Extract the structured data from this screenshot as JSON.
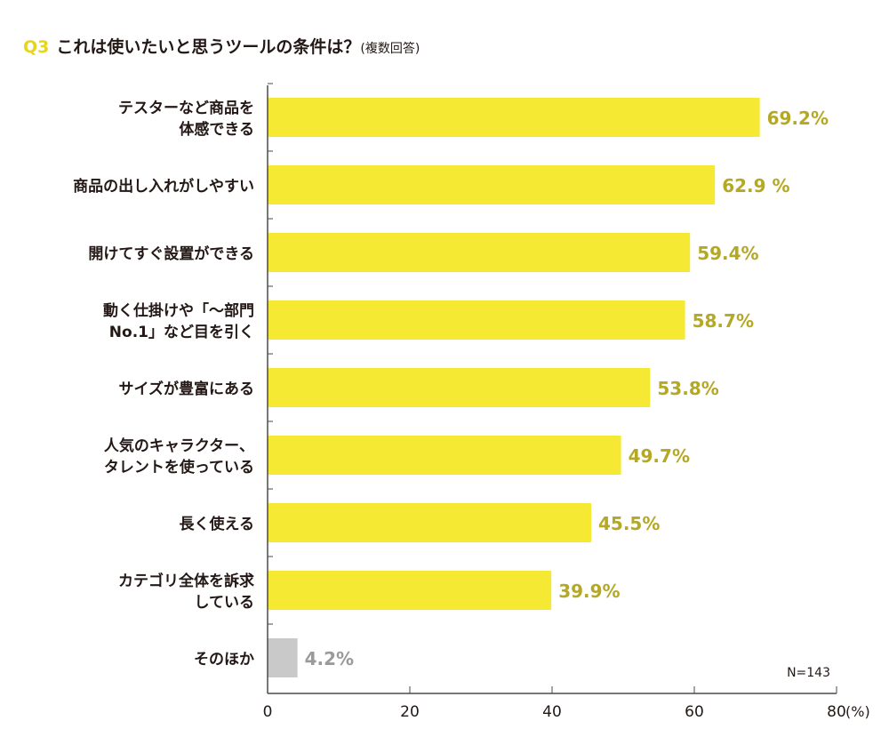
{
  "question": {
    "number": "Q3",
    "title": "これは使いたいと思うツールの条件は？",
    "subtitle": "(複数回答)"
  },
  "sample_note": "N=143",
  "colors": {
    "bar": "#f5e934",
    "other_bar": "#c9c9c9",
    "value_label": "#b5a824",
    "other_label": "#9a9a9a",
    "axis": "#4a4a4a"
  },
  "chart_data": {
    "type": "bar",
    "orientation": "horizontal",
    "categories": [
      [
        "テスターなど商品を",
        "体感できる"
      ],
      [
        "商品の出し入れがしやすい"
      ],
      [
        "開けてすぐ設置ができる"
      ],
      [
        "動く仕掛けや「～部門",
        "No.1」など目を引く"
      ],
      [
        "サイズが豊富にある"
      ],
      [
        "人気のキャラクター、",
        "タレントを使っている"
      ],
      [
        "長く使える"
      ],
      [
        "カテゴリ全体を訴求",
        "している"
      ],
      [
        "そのほか"
      ]
    ],
    "values": [
      69.2,
      62.9,
      59.4,
      58.7,
      53.8,
      49.7,
      45.5,
      39.9,
      4.2
    ],
    "value_labels": [
      "69.2%",
      "62.9 %",
      "59.4%",
      "58.7%",
      "53.8%",
      "49.7%",
      "45.5%",
      "39.9%",
      "4.2%"
    ],
    "xlim": [
      0,
      80
    ],
    "xticks": [
      "0",
      "20",
      "40",
      "60",
      "80"
    ],
    "xunit": "(%)",
    "grid": false
  }
}
